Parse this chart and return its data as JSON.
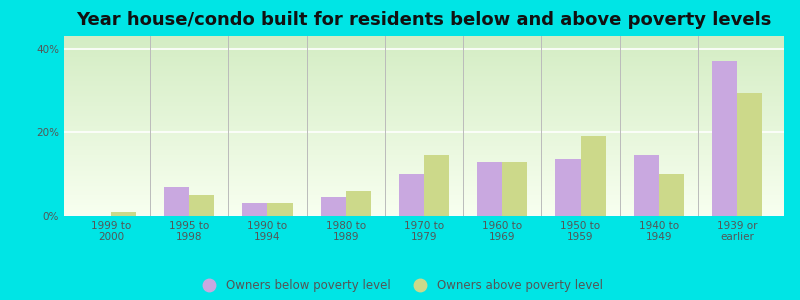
{
  "title": "Year house/condo built for residents below and above poverty levels",
  "categories": [
    "1999 to\n2000",
    "1995 to\n1998",
    "1990 to\n1994",
    "1980 to\n1989",
    "1970 to\n1979",
    "1960 to\n1969",
    "1950 to\n1959",
    "1940 to\n1949",
    "1939 or\nearlier"
  ],
  "below_poverty": [
    0.0,
    7.0,
    3.0,
    4.5,
    10.0,
    13.0,
    13.5,
    14.5,
    37.0
  ],
  "above_poverty": [
    1.0,
    5.0,
    3.0,
    6.0,
    14.5,
    13.0,
    19.0,
    10.0,
    29.5
  ],
  "below_color": "#c9a8e0",
  "above_color": "#ccd98a",
  "background_color": "#00e5e5",
  "grad_top": "#d4edc4",
  "grad_bottom": "#f8fff0",
  "ylabel_ticks": [
    "0%",
    "20%",
    "40%"
  ],
  "yticks": [
    0,
    20,
    40
  ],
  "ylim": [
    0,
    43
  ],
  "bar_width": 0.32,
  "legend_below": "Owners below poverty level",
  "legend_above": "Owners above poverty level",
  "title_fontsize": 13,
  "tick_fontsize": 7.5,
  "legend_fontsize": 8.5,
  "separator_color": "#bbbbbb",
  "tick_color": "#555555"
}
